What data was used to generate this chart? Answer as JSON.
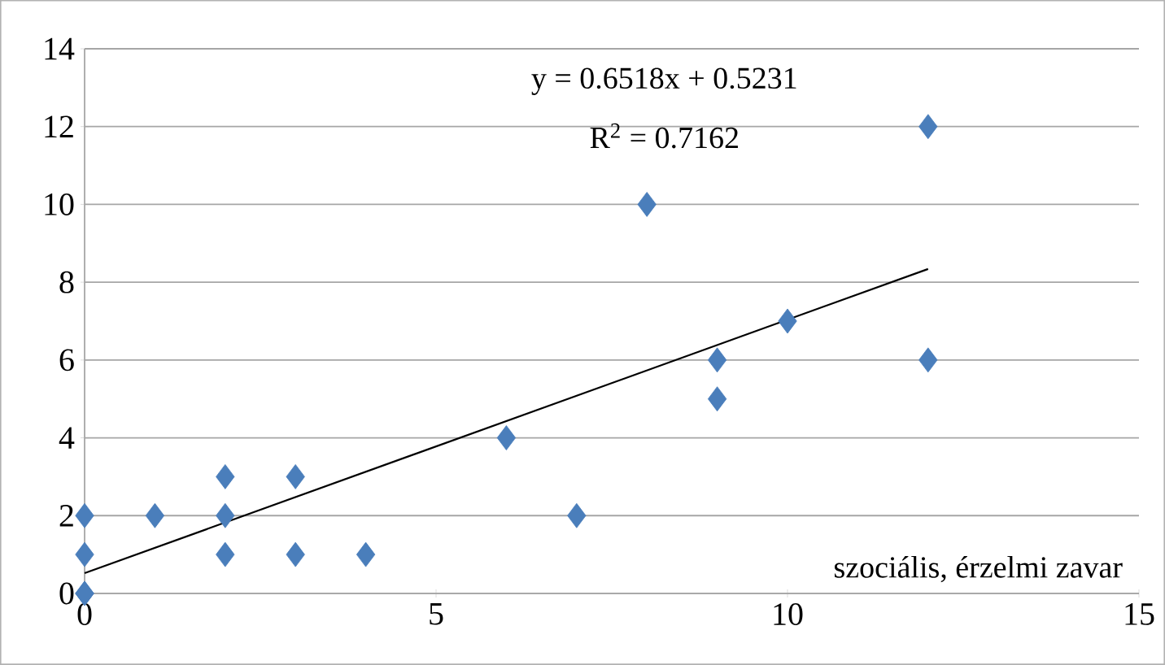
{
  "chart_data": {
    "type": "scatter",
    "xlabel": "szociális, érzelmi zavar",
    "annotations": [
      "y = 0.6518x + 0.5231",
      "R$^{2}$ = 0.7162"
    ],
    "xlim": [
      0,
      15
    ],
    "ylim": [
      0,
      14
    ],
    "xticks": [
      0,
      5,
      10,
      15
    ],
    "yticks": [
      0,
      2,
      4,
      6,
      8,
      10,
      12,
      14
    ],
    "grid": "y",
    "series": [
      {
        "color": "#4a7ebb",
        "marker": "diamond",
        "x": [
          0,
          0,
          0,
          0,
          1,
          2,
          2,
          2,
          3,
          3,
          4,
          6,
          7,
          8,
          9,
          9,
          10,
          12,
          12
        ],
        "values": [
          0,
          0,
          1,
          2,
          2,
          1,
          2,
          3,
          1,
          3,
          1,
          4,
          2,
          10,
          5,
          6,
          7,
          6,
          12
        ]
      },
      {
        "type": "line",
        "color": "#000000",
        "marker": "none",
        "line_style": "solid",
        "x": [
          0,
          12
        ],
        "values": [
          0.52,
          8.34
        ]
      }
    ]
  }
}
